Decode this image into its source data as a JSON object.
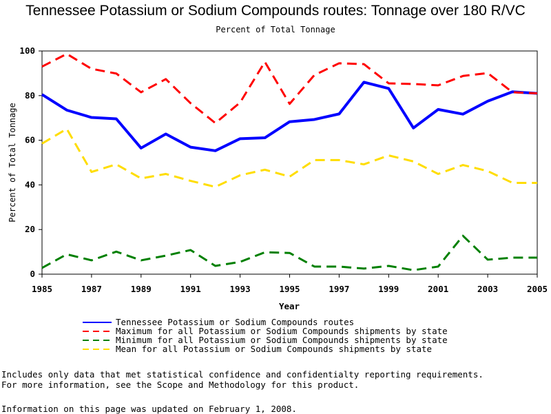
{
  "chart_data": {
    "type": "line",
    "title": "Tennessee Potassium or Sodium Compounds routes: Tonnage over 180 R/VC",
    "subtitle": "Percent of Total Tonnage",
    "xlabel": "Year",
    "ylabel": "Percent of Total Tonnage",
    "xlim": [
      1985,
      2005
    ],
    "ylim": [
      0,
      100
    ],
    "xticks": [
      1985,
      1987,
      1989,
      1991,
      1993,
      1995,
      1997,
      1999,
      2001,
      2003,
      2005
    ],
    "yticks": [
      0,
      20,
      40,
      60,
      80,
      100
    ],
    "x": [
      1985,
      1986,
      1987,
      1988,
      1989,
      1990,
      1991,
      1992,
      1993,
      1994,
      1995,
      1996,
      1997,
      1998,
      1999,
      2000,
      2001,
      2002,
      2003,
      2004,
      2005
    ],
    "series": [
      {
        "name": "Tennessee Potassium or Sodium Compounds routes",
        "color": "#0000ff",
        "style": "solid",
        "values": [
          80.5,
          73.5,
          70.2,
          69.6,
          56.5,
          62.8,
          56.9,
          55.3,
          60.7,
          61.1,
          68.3,
          69.3,
          71.8,
          86.0,
          83.2,
          65.5,
          73.8,
          71.7,
          77.5,
          81.7,
          81.0
        ]
      },
      {
        "name": "Maximum for all Potassium or Sodium Compounds shipments by state",
        "color": "#ff0000",
        "style": "dashed",
        "values": [
          93.0,
          98.7,
          92.0,
          89.9,
          81.5,
          87.4,
          76.6,
          67.7,
          76.9,
          95.1,
          76.3,
          89.2,
          94.5,
          94.1,
          85.5,
          85.2,
          84.6,
          88.8,
          90.1,
          81.5,
          81.0
        ]
      },
      {
        "name": "Minimum for all Potassium or Sodium Compounds shipments by state",
        "color": "#008000",
        "style": "dashed",
        "values": [
          2.8,
          8.9,
          6.2,
          10.1,
          6.2,
          8.3,
          10.8,
          3.7,
          5.5,
          9.8,
          9.5,
          3.4,
          3.4,
          2.5,
          3.7,
          1.8,
          3.4,
          17.2,
          6.5,
          7.4,
          7.4
        ]
      },
      {
        "name": "Mean for all Potassium or Sodium Compounds shipments by state",
        "color": "#ffdd00",
        "style": "dashed",
        "values": [
          58.5,
          65.1,
          45.8,
          49.2,
          42.9,
          44.9,
          41.8,
          39.1,
          44.3,
          46.8,
          43.7,
          51.1,
          51.1,
          49.2,
          53.2,
          50.5,
          44.9,
          48.9,
          46.2,
          40.9,
          40.9
        ]
      }
    ],
    "legend_placement": "bottom"
  },
  "notes": {
    "line1": "Includes only data that met statistical confidence and confidentialty reporting requirements.",
    "line2": "For more information, see the Scope and Methodology for this product.",
    "updated": "Information on this page was updated on February 1, 2008."
  }
}
